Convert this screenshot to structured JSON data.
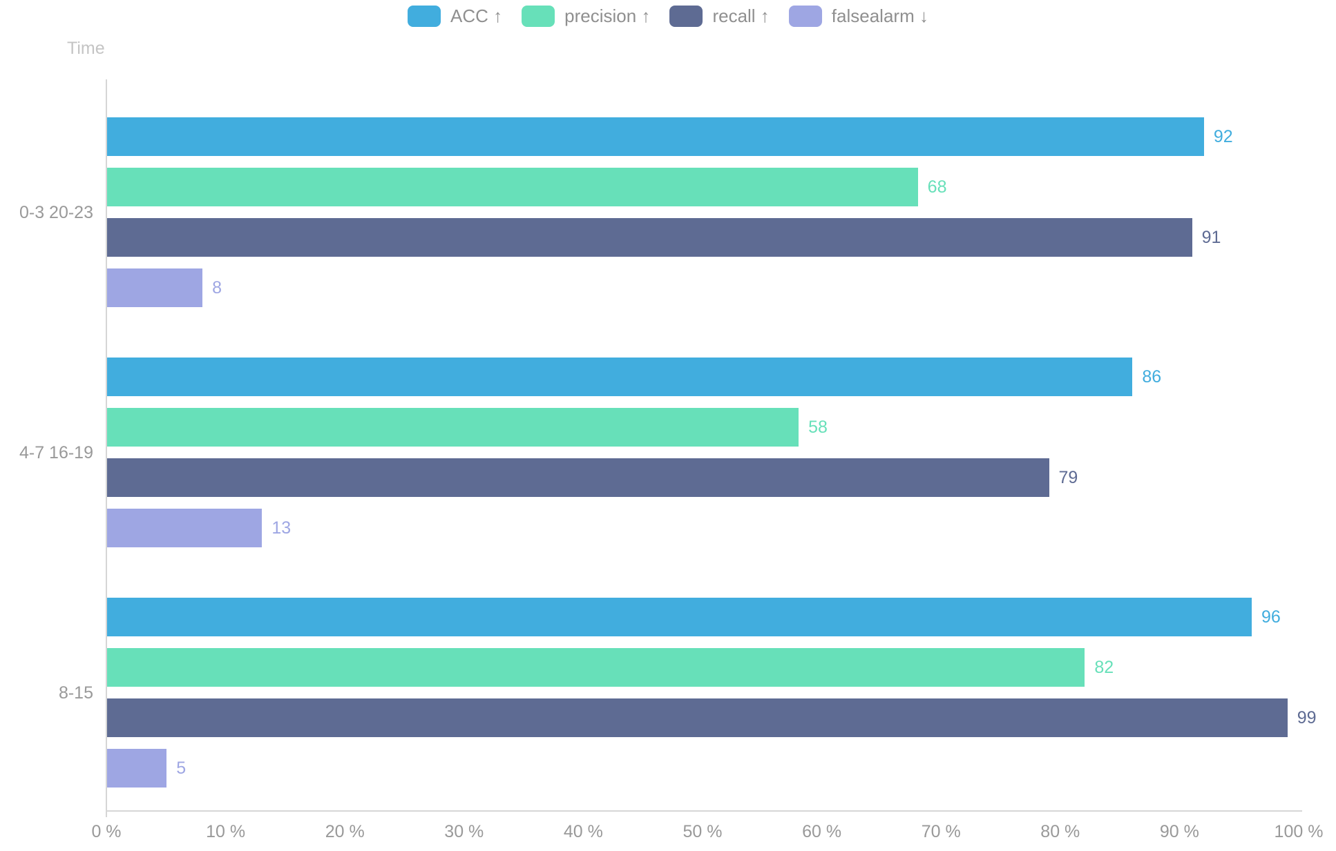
{
  "chart": {
    "y_axis_name": "Time",
    "x_ticks": [
      "0 %",
      "10 %",
      "20 %",
      "30 %",
      "40 %",
      "50 %",
      "60 %",
      "70 %",
      "80 %",
      "90 %",
      "100 %"
    ],
    "colors": {
      "acc": "#41ADDE",
      "precision": "#67E0B9",
      "recall": "#5E6B93",
      "falsealarm": "#9EA6E3",
      "axis_line": "#d6d6d6",
      "tick_text": "#999999",
      "legend_text": "#8f8f8f",
      "axis_name_text": "#c4c4c4"
    }
  },
  "chart_data": {
    "type": "bar",
    "orientation": "horizontal",
    "title": "",
    "xlabel": "",
    "ylabel": "Time",
    "xlim": [
      0,
      100
    ],
    "x_tick_step": 10,
    "x_tick_suffix": " %",
    "grid": false,
    "legend_position": "top",
    "value_labels": true,
    "categories": [
      "0-3 20-23",
      "4-7 16-19",
      "8-15"
    ],
    "series": [
      {
        "name": "ACC ↑",
        "key": "acc",
        "color": "#41ADDE",
        "values": [
          92,
          86,
          96
        ]
      },
      {
        "name": "precision ↑",
        "key": "precision",
        "color": "#67E0B9",
        "values": [
          68,
          58,
          82
        ]
      },
      {
        "name": "recall ↑",
        "key": "recall",
        "color": "#5E6B93",
        "values": [
          91,
          79,
          99
        ]
      },
      {
        "name": "falsealarm ↓",
        "key": "falsealarm",
        "color": "#9EA6E3",
        "values": [
          8,
          13,
          5
        ]
      }
    ]
  }
}
